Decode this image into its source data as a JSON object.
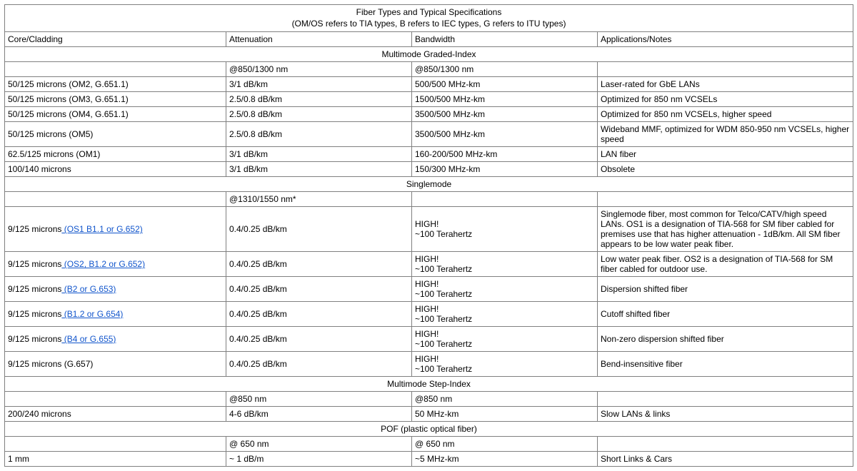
{
  "title_line1": "Fiber Types and Typical Specifications",
  "title_line2": "(OM/OS refers to TIA types, B refers to IEC types, G refers to ITU types)",
  "headers": {
    "c1": "Core/Cladding",
    "c2": "Attenuation",
    "c3": "Bandwidth",
    "c4": "Applications/Notes"
  },
  "sections": {
    "mm_graded": "Multimode Graded-Index",
    "sm": "Singlemode",
    "mm_step": "Multimode Step-Index",
    "pof": "POF (plastic optical fiber)"
  },
  "mm_subhdr": {
    "c2": "@850/1300 nm",
    "c3": "@850/1300 nm"
  },
  "mm_rows": [
    {
      "c1": "50/125 microns (OM2, G.651.1)",
      "c2": " 3/1 dB/km",
      "c3": "500/500 MHz-km",
      "c4": "Laser-rated for GbE LANs"
    },
    {
      "c1": "50/125 microns (OM3, G.651.1)",
      "c2": " 2.5/0.8 dB/km",
      "c3": "1500/500 MHz-km",
      "c4": "Optimized for 850 nm VCSELs"
    },
    {
      "c1": "50/125 microns (OM4, G.651.1)",
      "c2": " 2.5/0.8 dB/km",
      "c3": "3500/500 MHz-km",
      "c4": "Optimized for 850 nm VCSELs, higher speed"
    },
    {
      "c1": "50/125 microns (OM5)",
      "c2": " 2.5/0.8 dB/km",
      "c3": "3500/500 MHz-km",
      "c4": " Wideband MMF, optimized for WDM 850-950 nm VCSELs, higher speed"
    },
    {
      "c1": "62.5/125 microns (OM1)",
      "c2": "3/1 dB/km",
      "c3": "160-200/500 MHz-km",
      "c4": "LAN fiber"
    },
    {
      "c1": "100/140 microns",
      "c2": " 3/1 dB/km",
      "c3": "150/300 MHz-km",
      "c4": "Obsolete"
    }
  ],
  "sm_subhdr": {
    "c2": "@1310/1550 nm*"
  },
  "sm_rows": [
    {
      "pref": "9/125 microns",
      "link": " (OS1 B1.1 or G.652)",
      "c2": "0.4/0.25 dB/km",
      "c3a": " HIGH!",
      "c3b": "~100 Terahertz",
      "c4": " Singlemode fiber,  most common  for  Telco/CATV/high speed LANs. OS1 is a designation of TIA-568 for SM fiber cabled for premises use that has higher attenuation - 1dB/km. All SM fiber appears to be low water peak fiber."
    },
    {
      "pref": "9/125 microns",
      "link": " (OS2, B1.2 or G.652)",
      "c2": "0.4/0.25 dB/km",
      "c3a": " HIGH!",
      "c3b": "~100 Terahertz",
      "c4": " Low water peak fiber. OS2 is a designation of TIA-568 for SM fiber cabled for outdoor  use."
    },
    {
      "pref": "9/125 microns",
      "link": " (B2 or G.653)",
      "c2": "0.4/0.25 dB/km",
      "c3a": " HIGH!",
      "c3b": "~100 Terahertz",
      "c4": "Dispersion shifted fiber"
    },
    {
      "pref": "9/125 microns",
      "link": " (B1.2 or G.654)",
      "c2": "0.4/0.25 dB/km",
      "c3a": " HIGH!",
      "c3b": "~100 Terahertz",
      "c4": "Cutoff shifted fiber"
    },
    {
      "pref": "9/125 microns",
      "link": " (B4 or G.655)",
      "c2": "0.4/0.25 dB/km",
      "c3a": "HIGH!",
      "c3b": "~100 Terahertz",
      "c4": "Non-zero dispersion shifted fiber"
    },
    {
      "pref": "9/125 microns (G.657)",
      "link": "",
      "c2": "0.4/0.25 dB/km",
      "c3a": " HIGH!",
      "c3b": "~100 Terahertz",
      "c4": "Bend-insensitive fiber"
    }
  ],
  "step_subhdr": {
    "c2": "@850 nm",
    "c3": "@850 nm"
  },
  "step_rows": [
    {
      "c1": "200/240 microns",
      "c2": "4-6 dB/km",
      "c3": "50 MHz-km",
      "c4": "Slow LANs & links"
    }
  ],
  "pof_subhdr": {
    "c2": "@ 650 nm",
    "c3": "@ 650 nm"
  },
  "pof_rows": [
    {
      "c1": "1 mm",
      "c2": "~ 1 dB/m",
      "c3": "~5 MHz-km",
      "c4": "Short Links & Cars"
    }
  ],
  "colors": {
    "link": "#1155cc",
    "border": "#808080"
  }
}
